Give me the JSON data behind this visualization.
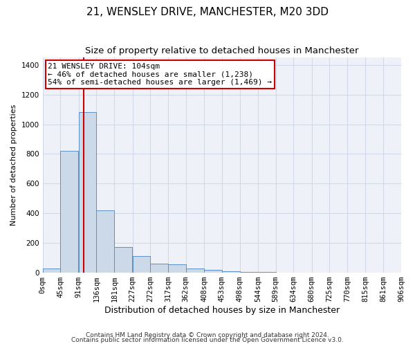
{
  "title": "21, WENSLEY DRIVE, MANCHESTER, M20 3DD",
  "subtitle": "Size of property relative to detached houses in Manchester",
  "xlabel": "Distribution of detached houses by size in Manchester",
  "ylabel": "Number of detached properties",
  "footnote1": "Contains HM Land Registry data © Crown copyright and database right 2024.",
  "footnote2": "Contains public sector information licensed under the Open Government Licence v3.0.",
  "annotation_line1": "21 WENSLEY DRIVE: 104sqm",
  "annotation_line2": "← 46% of detached houses are smaller (1,238)",
  "annotation_line3": "54% of semi-detached houses are larger (1,469) →",
  "property_size": 104,
  "bin_starts": [
    0,
    45,
    91,
    136,
    181,
    227,
    272,
    317,
    362,
    408,
    453,
    498,
    544,
    589,
    634,
    680,
    725,
    770,
    815,
    861
  ],
  "bin_labels": [
    "0sqm",
    "45sqm",
    "91sqm",
    "136sqm",
    "181sqm",
    "227sqm",
    "272sqm",
    "317sqm",
    "362sqm",
    "408sqm",
    "453sqm",
    "498sqm",
    "544sqm",
    "589sqm",
    "634sqm",
    "680sqm",
    "725sqm",
    "770sqm",
    "815sqm",
    "861sqm",
    "906sqm"
  ],
  "bar_heights": [
    30,
    820,
    1080,
    420,
    175,
    110,
    60,
    55,
    30,
    20,
    12,
    5,
    3,
    2,
    1,
    1,
    0,
    0,
    0,
    0
  ],
  "bar_color": "#ccd9e8",
  "bar_edge_color": "#5b8fc4",
  "vline_color": "#cc0000",
  "vline_x": 104,
  "annotation_box_color": "#cc0000",
  "ylim": [
    0,
    1450
  ],
  "yticks": [
    0,
    200,
    400,
    600,
    800,
    1000,
    1200,
    1400
  ],
  "grid_color": "#d0d8e8",
  "plot_bg_color": "#eef2f8",
  "title_fontsize": 11,
  "subtitle_fontsize": 9.5,
  "xlabel_fontsize": 9,
  "ylabel_fontsize": 8,
  "tick_fontsize": 7.5,
  "annotation_fontsize": 8
}
